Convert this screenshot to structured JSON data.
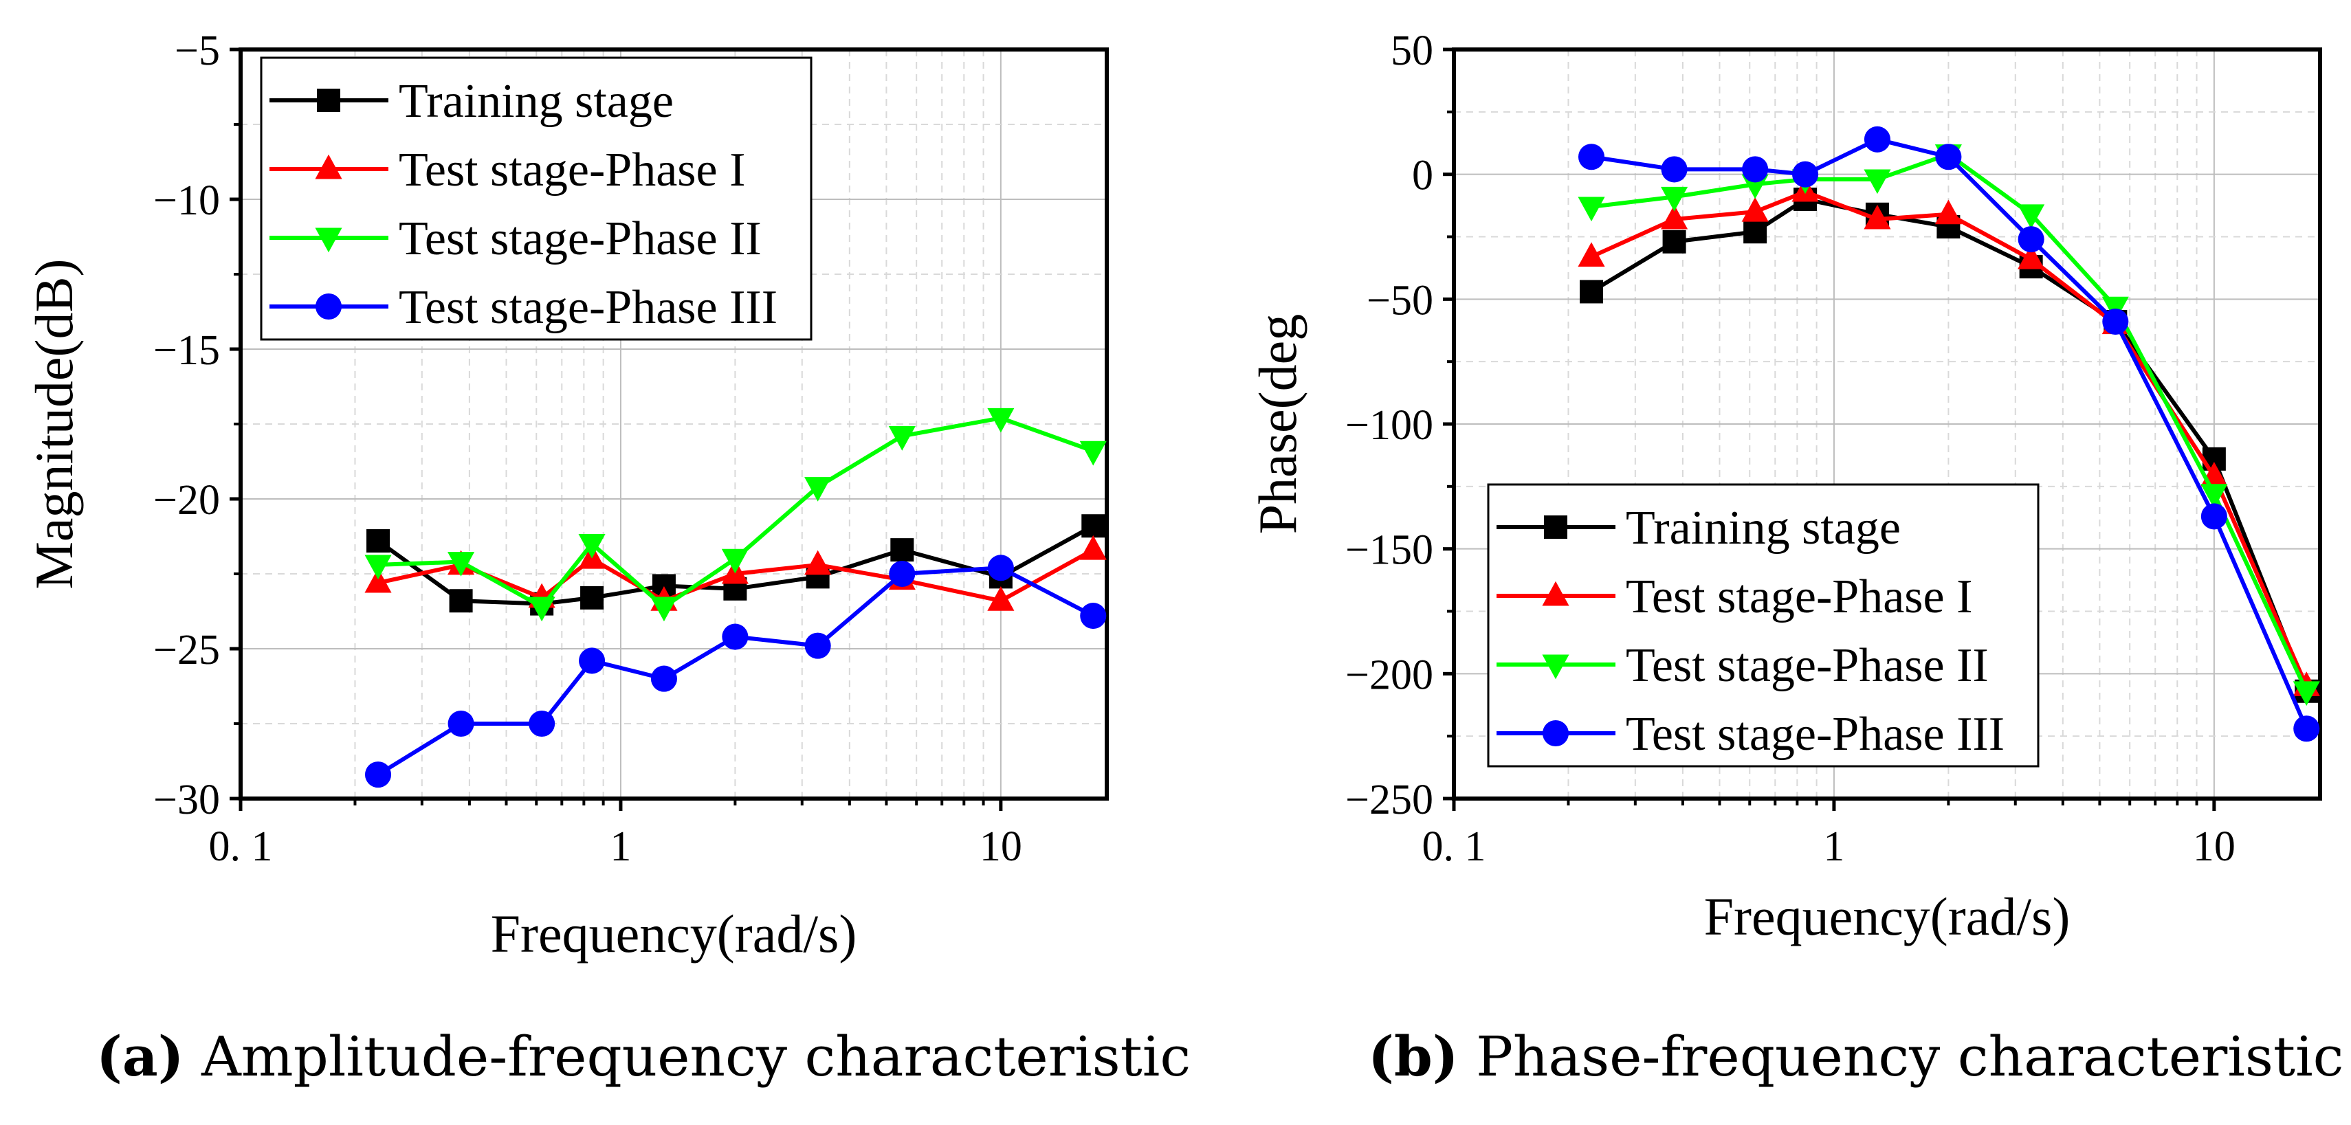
{
  "chart_data": [
    {
      "panel": "a",
      "type": "line",
      "xlabel": "Frequency(rad/s)",
      "ylabel": "Magnitude(dB)",
      "xscale": "log",
      "xlim": [
        0.1,
        19
      ],
      "ylim": [
        -30,
        -5
      ],
      "xticks": [
        0.1,
        1,
        10
      ],
      "xtick_labels": [
        "0. 1",
        "1",
        "10"
      ],
      "yticks": [
        -5,
        -10,
        -15,
        -20,
        -25,
        -30
      ],
      "ytick_labels": [
        "−5",
        "−10",
        "−15",
        "−20",
        "−25",
        "−30"
      ],
      "grid": true,
      "legend_position": "top-left",
      "x": [
        0.23,
        0.38,
        0.62,
        0.84,
        1.3,
        2.0,
        3.3,
        5.5,
        10,
        17.5
      ],
      "series": [
        {
          "name": "Training stage",
          "color": "#000000",
          "marker": "square",
          "values": [
            -21.4,
            -23.4,
            -23.5,
            -23.3,
            -22.9,
            -23.0,
            -22.6,
            -21.7,
            -22.6,
            -20.9
          ]
        },
        {
          "name": "Test stage-Phase I",
          "color": "#ff0000",
          "marker": "triangle-up",
          "values": [
            -22.8,
            -22.2,
            -23.3,
            -22.0,
            -23.4,
            -22.5,
            -22.2,
            -22.7,
            -23.4,
            -21.7
          ]
        },
        {
          "name": "Test stage-Phase II",
          "color": "#00ff00",
          "marker": "triangle-down",
          "values": [
            -22.2,
            -22.1,
            -23.6,
            -21.5,
            -23.6,
            -22.0,
            -19.6,
            -17.9,
            -17.3,
            -18.4
          ]
        },
        {
          "name": "Test stage-Phase III",
          "color": "#0000ff",
          "marker": "circle",
          "values": [
            -29.2,
            -27.5,
            -27.5,
            -25.4,
            -26.0,
            -24.6,
            -24.9,
            -22.5,
            -22.3,
            -23.9
          ]
        }
      ]
    },
    {
      "panel": "b",
      "type": "line",
      "xlabel": "Frequency(rad/s)",
      "ylabel": "Phase(deg",
      "xscale": "log",
      "xlim": [
        0.1,
        19
      ],
      "ylim": [
        -250,
        50
      ],
      "xticks": [
        0.1,
        1,
        10
      ],
      "xtick_labels": [
        "0. 1",
        "1",
        "10"
      ],
      "yticks": [
        50,
        0,
        -50,
        -100,
        -150,
        -200,
        -250
      ],
      "ytick_labels": [
        "50",
        "0",
        "−50",
        "−100",
        "−150",
        "−200",
        "−250"
      ],
      "grid": true,
      "legend_position": "bottom-left",
      "x": [
        0.23,
        0.38,
        0.62,
        0.84,
        1.3,
        2.0,
        3.3,
        5.5,
        10,
        17.5
      ],
      "series": [
        {
          "name": "Training stage",
          "color": "#000000",
          "marker": "square",
          "values": [
            -47,
            -27,
            -23,
            -10,
            -16,
            -21,
            -37,
            -59,
            -114,
            -207
          ]
        },
        {
          "name": "Test stage-Phase I",
          "color": "#ff0000",
          "marker": "triangle-up",
          "values": [
            -33,
            -18,
            -15,
            -7,
            -18,
            -16,
            -34,
            -60,
            -121,
            -205
          ]
        },
        {
          "name": "Test stage-Phase II",
          "color": "#00ff00",
          "marker": "triangle-down",
          "values": [
            -13,
            -9,
            -4,
            -2,
            -2,
            8,
            -16,
            -53,
            -128,
            -207
          ]
        },
        {
          "name": "Test stage-Phase III",
          "color": "#0000ff",
          "marker": "circle",
          "values": [
            7,
            2,
            2,
            0,
            14,
            7,
            -26,
            -59,
            -137,
            -222
          ]
        }
      ]
    }
  ],
  "captions": [
    {
      "label": "(a)",
      "text": " Amplitude-frequency characteristic"
    },
    {
      "label": "(b)",
      "text": " Phase-frequency characteristic"
    }
  ]
}
